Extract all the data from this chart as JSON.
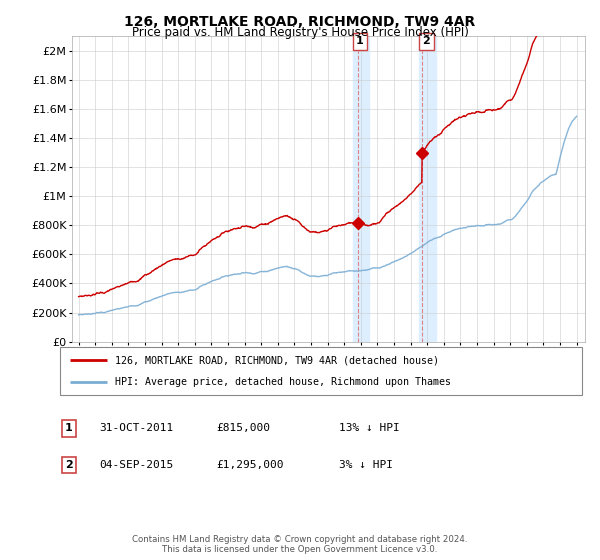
{
  "title": "126, MORTLAKE ROAD, RICHMOND, TW9 4AR",
  "subtitle": "Price paid vs. HM Land Registry's House Price Index (HPI)",
  "ylabel_ticks": [
    "£0",
    "£200K",
    "£400K",
    "£600K",
    "£800K",
    "£1M",
    "£1.2M",
    "£1.4M",
    "£1.6M",
    "£1.8M",
    "£2M"
  ],
  "ytick_values": [
    0,
    200000,
    400000,
    600000,
    800000,
    1000000,
    1200000,
    1400000,
    1600000,
    1800000,
    2000000
  ],
  "years": [
    1995.0,
    1995.25,
    1995.5,
    1995.75,
    1996.0,
    1996.25,
    1996.5,
    1996.75,
    1997.0,
    1997.25,
    1997.5,
    1997.75,
    1998.0,
    1998.25,
    1998.5,
    1998.75,
    1999.0,
    1999.25,
    1999.5,
    1999.75,
    2000.0,
    2000.25,
    2000.5,
    2000.75,
    2001.0,
    2001.25,
    2001.5,
    2001.75,
    2002.0,
    2002.25,
    2002.5,
    2002.75,
    2003.0,
    2003.25,
    2003.5,
    2003.75,
    2004.0,
    2004.25,
    2004.5,
    2004.75,
    2005.0,
    2005.25,
    2005.5,
    2005.75,
    2006.0,
    2006.25,
    2006.5,
    2006.75,
    2007.0,
    2007.25,
    2007.5,
    2007.75,
    2008.0,
    2008.25,
    2008.5,
    2008.75,
    2009.0,
    2009.25,
    2009.5,
    2009.75,
    2010.0,
    2010.25,
    2010.5,
    2010.75,
    2011.0,
    2011.25,
    2011.5,
    2011.75,
    2012.0,
    2012.25,
    2012.5,
    2012.75,
    2013.0,
    2013.25,
    2013.5,
    2013.75,
    2014.0,
    2014.25,
    2014.5,
    2014.75,
    2015.0,
    2015.25,
    2015.5,
    2015.75,
    2016.0,
    2016.25,
    2016.5,
    2016.75,
    2017.0,
    2017.25,
    2017.5,
    2017.75,
    2018.0,
    2018.25,
    2018.5,
    2018.75,
    2019.0,
    2019.25,
    2019.5,
    2019.75,
    2020.0,
    2020.25,
    2020.5,
    2020.75,
    2021.0,
    2021.25,
    2021.5,
    2021.75,
    2022.0,
    2022.25,
    2022.5,
    2022.75,
    2023.0,
    2023.25,
    2023.5,
    2023.75,
    2024.0,
    2024.25,
    2024.5,
    2024.75,
    2025.0
  ],
  "hpi_quarterly": [
    185000,
    188000,
    190000,
    193000,
    196000,
    199000,
    202000,
    207000,
    213000,
    219000,
    226000,
    233000,
    240000,
    248000,
    255000,
    262000,
    270000,
    280000,
    292000,
    304000,
    315000,
    325000,
    332000,
    336000,
    338000,
    341000,
    346000,
    352000,
    360000,
    372000,
    387000,
    402000,
    415000,
    428000,
    438000,
    448000,
    456000,
    463000,
    468000,
    471000,
    472000,
    473000,
    474000,
    476000,
    479000,
    484000,
    491000,
    498000,
    505000,
    513000,
    518000,
    515000,
    505000,
    492000,
    477000,
    462000,
    450000,
    445000,
    443000,
    448000,
    458000,
    466000,
    472000,
    477000,
    481000,
    484000,
    487000,
    490000,
    492000,
    495000,
    498000,
    502000,
    508000,
    516000,
    526000,
    537000,
    549000,
    562000,
    576000,
    591000,
    607000,
    625000,
    645000,
    665000,
    680000,
    695000,
    710000,
    724000,
    738000,
    752000,
    763000,
    771000,
    778000,
    783000,
    787000,
    790000,
    793000,
    795000,
    797000,
    800000,
    803000,
    808000,
    815000,
    825000,
    840000,
    862000,
    892000,
    930000,
    975000,
    1015000,
    1050000,
    1080000,
    1105000,
    1125000,
    1140000,
    1150000,
    1275000,
    1380000,
    1460000,
    1520000,
    1550000
  ],
  "sale1_year": 2011.83,
  "sale1_price": 815000,
  "sale2_year": 2015.67,
  "sale2_price": 1295000,
  "legend_line1": "126, MORTLAKE ROAD, RICHMOND, TW9 4AR (detached house)",
  "legend_line2": "HPI: Average price, detached house, Richmond upon Thames",
  "annotation1_label": "1",
  "annotation1_date": "31-OCT-2011",
  "annotation1_price": "£815,000",
  "annotation1_note": "13% ↓ HPI",
  "annotation2_label": "2",
  "annotation2_date": "04-SEP-2015",
  "annotation2_price": "£1,295,000",
  "annotation2_note": "3% ↓ HPI",
  "footer": "Contains HM Land Registry data © Crown copyright and database right 2024.\nThis data is licensed under the Open Government Licence v3.0.",
  "hpi_color": "#7aadd4",
  "sale_color": "#cc0000",
  "grid_color": "#cccccc",
  "bg_color": "#ffffff",
  "highlight_color": "#ddeeff"
}
